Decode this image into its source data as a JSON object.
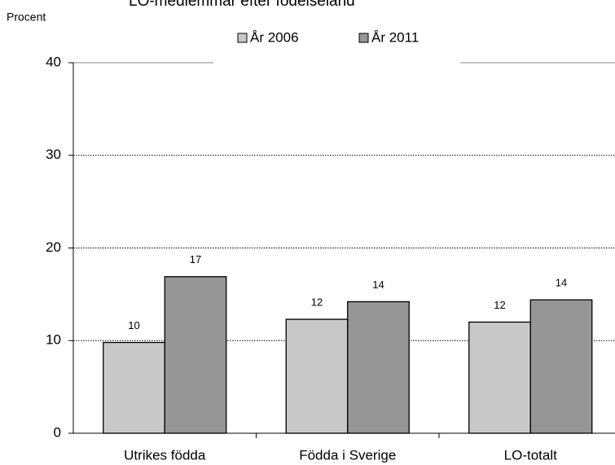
{
  "chart_data": {
    "type": "bar",
    "title": "LO-medlemmar efter födelseland",
    "y_label": "Procent",
    "categories": [
      "Utrikes födda",
      "Födda i Sverige",
      "LO-totalt"
    ],
    "series": [
      {
        "name": "År 2006",
        "color": "#c8c8c8",
        "values": [
          9.8,
          12.3,
          12.0
        ],
        "value_labels": [
          "10",
          "12",
          "12"
        ]
      },
      {
        "name": "År 2011",
        "color": "#969696",
        "values": [
          16.9,
          14.2,
          14.4
        ],
        "value_labels": [
          "17",
          "14",
          "14"
        ]
      }
    ],
    "ylim": [
      0,
      40
    ],
    "yticks": [
      0,
      10,
      20,
      30,
      40
    ],
    "grid": true,
    "legend": "top"
  }
}
